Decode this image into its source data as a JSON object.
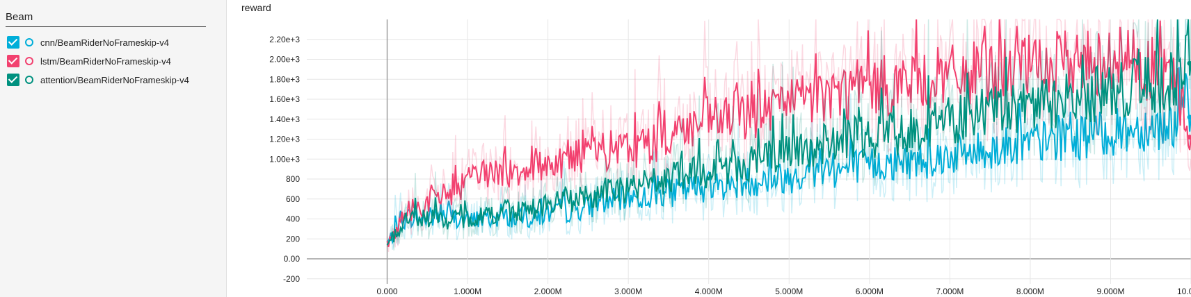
{
  "sidebar": {
    "title": "Beam",
    "runs": [
      {
        "label": "cnn/BeamRiderNoFrameskip-v4",
        "color": "#00aed9",
        "checked": true
      },
      {
        "label": "lstm/BeamRiderNoFrameskip-v4",
        "color": "#f2416f",
        "checked": true
      },
      {
        "label": "attention/BeamRiderNoFrameskip-v4",
        "color": "#00917f",
        "checked": true
      }
    ]
  },
  "chart_data": {
    "type": "line",
    "title": "reward",
    "xlabel": "",
    "ylabel": "",
    "xlim": [
      -1000000,
      10000000
    ],
    "ylim": [
      -250,
      2400
    ],
    "grid": true,
    "x_ticks": [
      0,
      1000000,
      2000000,
      3000000,
      4000000,
      5000000,
      6000000,
      7000000,
      8000000,
      9000000,
      10000000
    ],
    "x_tick_labels": [
      "0.000",
      "1.000M",
      "2.000M",
      "3.000M",
      "4.000M",
      "5.000M",
      "6.000M",
      "7.000M",
      "8.000M",
      "9.000M",
      "10.00M"
    ],
    "y_ticks": [
      -200,
      0,
      200,
      400,
      600,
      800,
      1000,
      1200,
      1400,
      1600,
      1800,
      2000,
      2200
    ],
    "y_tick_labels": [
      "-200",
      "0.00",
      "200",
      "400",
      "600",
      "800",
      "1.00e+3",
      "1.20e+3",
      "1.40e+3",
      "1.60e+3",
      "1.80e+3",
      "2.00e+3",
      "2.20e+3"
    ],
    "x": [
      0,
      250000,
      500000,
      750000,
      1000000,
      1250000,
      1500000,
      1750000,
      2000000,
      2250000,
      2500000,
      2750000,
      3000000,
      3250000,
      3500000,
      3750000,
      4000000,
      4250000,
      4500000,
      4750000,
      5000000,
      5250000,
      5500000,
      5750000,
      6000000,
      6250000,
      6500000,
      6750000,
      7000000,
      7250000,
      7500000,
      7750000,
      8000000,
      8250000,
      8500000,
      8750000,
      9000000,
      9250000,
      9500000,
      9750000,
      10000000
    ],
    "series": [
      {
        "name": "cnn/BeamRiderNoFrameskip-v4",
        "color": "#00aed9",
        "values": [
          160,
          420,
          400,
          440,
          380,
          400,
          420,
          400,
          450,
          470,
          520,
          580,
          600,
          620,
          650,
          700,
          720,
          740,
          780,
          800,
          820,
          850,
          880,
          900,
          940,
          960,
          980,
          1000,
          1040,
          1060,
          1100,
          1130,
          1160,
          1180,
          1200,
          1230,
          1260,
          1300,
          1330,
          1350,
          1420
        ]
      },
      {
        "name": "lstm/BeamRiderNoFrameskip-v4",
        "color": "#f2416f",
        "values": [
          140,
          480,
          560,
          650,
          760,
          860,
          880,
          920,
          960,
          1000,
          1050,
          1080,
          1100,
          1150,
          1250,
          1300,
          1380,
          1420,
          1450,
          1500,
          1550,
          1600,
          1650,
          1680,
          1700,
          1750,
          1780,
          1800,
          1820,
          1850,
          1880,
          1900,
          1920,
          1940,
          1950,
          1980,
          2000,
          2020,
          1900,
          1850,
          1220
        ]
      },
      {
        "name": "attention/BeamRiderNoFrameskip-v4",
        "color": "#00917f",
        "values": [
          150,
          400,
          420,
          380,
          400,
          440,
          480,
          500,
          540,
          580,
          620,
          680,
          700,
          760,
          800,
          840,
          880,
          920,
          960,
          1000,
          1050,
          1100,
          1150,
          1200,
          1230,
          1260,
          1300,
          1350,
          1380,
          1420,
          1460,
          1500,
          1530,
          1560,
          1600,
          1630,
          1660,
          1700,
          1740,
          1780,
          1960
        ]
      }
    ]
  }
}
